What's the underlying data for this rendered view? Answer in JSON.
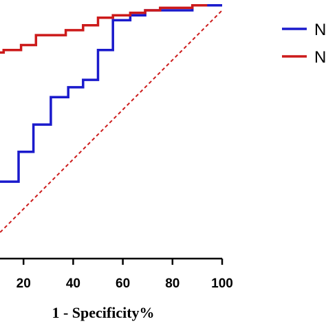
{
  "chart_data": {
    "type": "line",
    "title": "",
    "xlabel": "1 - Specificity%",
    "ylabel": "",
    "xlim": [
      0,
      100
    ],
    "ylim": [
      0,
      100
    ],
    "x_ticks": [
      "20",
      "40",
      "60",
      "80",
      "100"
    ],
    "x_tick_values": [
      20,
      40,
      60,
      80,
      100
    ],
    "grid": false,
    "legend_placement": "right",
    "series": [
      {
        "color": "#1a1acc",
        "legend_label": "N",
        "x": [
          0,
          3,
          3,
          10,
          10,
          18,
          18,
          24,
          24,
          31,
          31,
          38,
          38,
          44,
          44,
          50,
          50,
          56,
          56,
          63,
          63,
          69,
          69,
          88,
          88,
          100
        ],
        "y": [
          6,
          6,
          6,
          6,
          31,
          31,
          43,
          43,
          54,
          54,
          65,
          65,
          69,
          69,
          72,
          72,
          84,
          84,
          96,
          96,
          98,
          98,
          100,
          100,
          102,
          102
        ]
      },
      {
        "color": "#cc1a1a",
        "legend_label": "N",
        "x": [
          0,
          6,
          6,
          12,
          12,
          19,
          19,
          25,
          25,
          37,
          37,
          44,
          44,
          50,
          50,
          56,
          56,
          63,
          63,
          69,
          69,
          75,
          75,
          88,
          88,
          94
        ],
        "y": [
          81,
          81,
          83,
          83,
          84,
          84,
          86,
          86,
          90,
          90,
          92,
          92,
          94,
          94,
          97,
          97,
          98,
          98,
          99,
          99,
          100,
          100,
          101,
          101,
          102,
          102
        ]
      },
      {
        "color": "#cc1a1a",
        "dashed": true,
        "x": [
          0,
          100
        ],
        "y": [
          0,
          100
        ]
      }
    ]
  }
}
